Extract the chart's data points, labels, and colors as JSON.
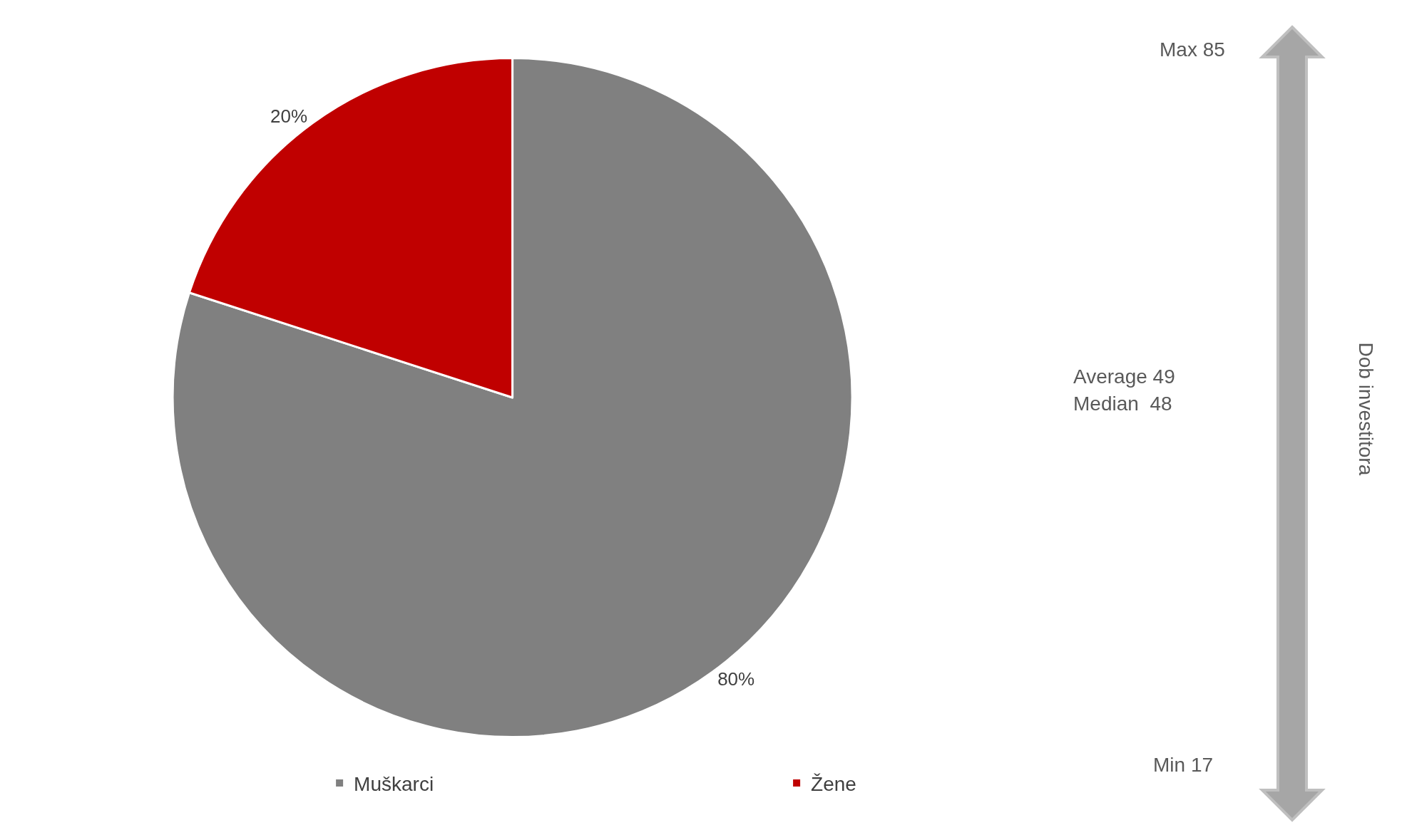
{
  "chart_data": [
    {
      "type": "pie",
      "categories": [
        "Muškarci",
        "Žene"
      ],
      "values": [
        80,
        20
      ],
      "colors": [
        "#808080",
        "#c00000"
      ],
      "value_labels": [
        "80%",
        "20%"
      ],
      "legend": "bottom"
    },
    {
      "type": "other",
      "ylabel": "Dob investitora",
      "annotations": [
        "Max 85",
        "Average 49",
        "Median  48",
        "Min 17"
      ]
    }
  ]
}
